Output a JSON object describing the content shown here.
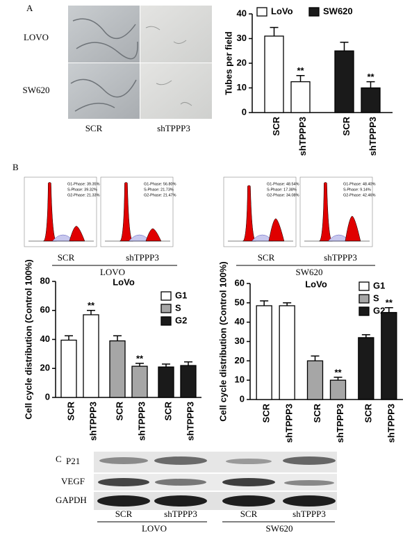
{
  "panel_labels": [
    "A",
    "B",
    "C"
  ],
  "tube_images": {
    "rows": [
      "LOVO",
      "SW620"
    ],
    "columns": [
      "SCR",
      "shTPPP3"
    ]
  },
  "flow": {
    "plots": [
      {
        "lines": [
          "G1-Phase: 39.35%",
          "S-Phase: 39.32%",
          "G2-Phase: 21.33%"
        ]
      },
      {
        "lines": [
          "G1-Phase: 56.80%",
          "S-Phase: 21.73%",
          "G2-Phase: 21.47%"
        ]
      },
      {
        "lines": [
          "G1-Phase: 48.54%",
          "S-Phase: 17.38%",
          "G2-Phase: 34.08%"
        ]
      },
      {
        "lines": [
          "G1-Phase: 48.40%",
          "S-Phase: 9.14%",
          "G2-Phase: 42.46%"
        ]
      }
    ],
    "sample_labels": [
      "SCR",
      "shTPPP3",
      "SCR",
      "shTPPP3"
    ],
    "groups": [
      "LOVO",
      "SW620"
    ]
  },
  "blot": {
    "rows": [
      "P21",
      "VEGF",
      "GAPDH"
    ],
    "lanes": [
      "SCR",
      "shTPPP3",
      "SCR",
      "shTPPP3"
    ],
    "groups": [
      "LOVO",
      "SW620"
    ]
  },
  "chart_data": [
    {
      "type": "bar",
      "y_label": "Tubes per field",
      "categories": [
        "SCR",
        "shTPPP3"
      ],
      "series": [
        {
          "name": "LoVo",
          "color": "#ffffff",
          "values": [
            31,
            12.5
          ],
          "errors": [
            3.5,
            2.5
          ],
          "significance": [
            null,
            "**"
          ]
        },
        {
          "name": "SW620",
          "color": "#1a1a1a",
          "values": [
            25,
            10
          ],
          "errors": [
            3.5,
            2.5
          ],
          "significance": [
            null,
            "**"
          ]
        }
      ],
      "ylim": [
        0,
        40
      ],
      "yticks": [
        0,
        10,
        20,
        30,
        40
      ],
      "legend": "top"
    },
    {
      "type": "bar",
      "title": "LoVo",
      "y_label": "Cell cycle distribution (Control 100%)",
      "categories": [
        "SCR",
        "shTPPP3"
      ],
      "series": [
        {
          "name": "G1",
          "color": "#ffffff",
          "values": [
            39.5,
            57
          ],
          "errors": [
            3,
            3
          ],
          "significance": [
            null,
            "**"
          ]
        },
        {
          "name": "S",
          "color": "#a6a6a6",
          "values": [
            39,
            21.5
          ],
          "errors": [
            3.5,
            2
          ],
          "significance": [
            null,
            "**"
          ]
        },
        {
          "name": "G2",
          "color": "#1a1a1a",
          "values": [
            21,
            22
          ],
          "errors": [
            2,
            2.5
          ],
          "significance": [
            null,
            null
          ]
        }
      ],
      "ylim": [
        0,
        80
      ],
      "yticks": [
        0,
        20,
        40,
        60,
        80
      ],
      "legend": "top right"
    },
    {
      "type": "bar",
      "title": "LoVo",
      "y_label": "Cell cycle distribution (Control 100%)",
      "categories": [
        "SCR",
        "shTPPP3"
      ],
      "series": [
        {
          "name": "G1",
          "color": "#ffffff",
          "values": [
            48.5,
            48.5
          ],
          "errors": [
            2.5,
            1.5
          ],
          "significance": [
            null,
            null
          ]
        },
        {
          "name": "S",
          "color": "#a6a6a6",
          "values": [
            20,
            10
          ],
          "errors": [
            2.5,
            1.5
          ],
          "significance": [
            null,
            "**"
          ]
        },
        {
          "name": "G2",
          "color": "#1a1a1a",
          "values": [
            32,
            45
          ],
          "errors": [
            1.5,
            2.5
          ],
          "significance": [
            null,
            "**"
          ]
        }
      ],
      "ylim": [
        0,
        60
      ],
      "yticks": [
        0,
        10,
        20,
        30,
        40,
        50,
        60
      ],
      "legend": "top right"
    }
  ]
}
